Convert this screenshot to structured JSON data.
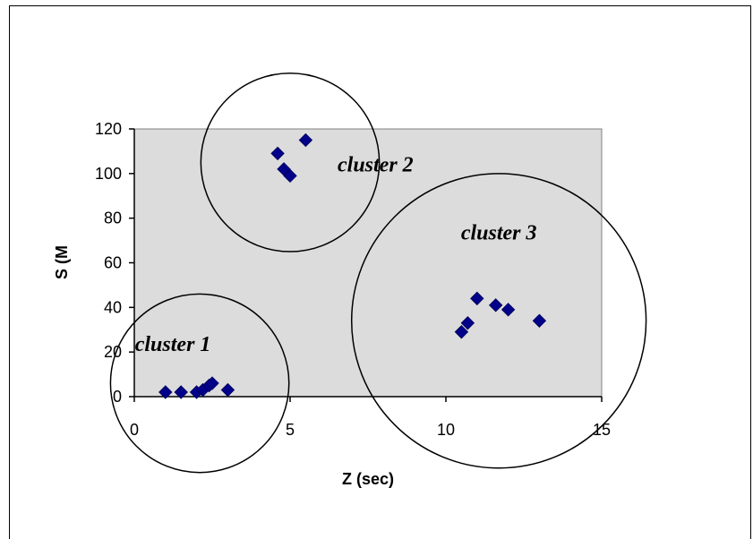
{
  "chart_data": {
    "type": "scatter",
    "xlabel": "Z (sec)",
    "ylabel": "S (M",
    "xlim": [
      0,
      15
    ],
    "ylim": [
      0,
      120
    ],
    "x_ticks": [
      "0",
      "5",
      "10",
      "15"
    ],
    "y_ticks": [
      "0",
      "20",
      "40",
      "60",
      "80",
      "100",
      "120"
    ],
    "grid": false,
    "plot_background": "#dcdcdc",
    "marker_color": "#00008b",
    "series": [
      {
        "x": [
          1.0,
          1.5,
          2.0,
          2.2,
          2.4,
          2.5,
          3.0,
          4.6,
          4.8,
          5.0,
          5.5,
          10.5,
          10.7,
          11.0,
          11.6,
          12.0,
          13.0
        ],
        "y": [
          2,
          2,
          2,
          3,
          5,
          6,
          3,
          109,
          102,
          99,
          115,
          29,
          33,
          44,
          41,
          39,
          34
        ]
      }
    ],
    "annotations": [
      {
        "label": "cluster 1",
        "center": [
          2.1,
          6
        ],
        "radius": 20
      },
      {
        "label": "cluster 2",
        "center": [
          5.0,
          105
        ],
        "radius": 20
      },
      {
        "label": "cluster 3",
        "center": [
          11.7,
          34
        ],
        "radius": 33
      }
    ]
  }
}
